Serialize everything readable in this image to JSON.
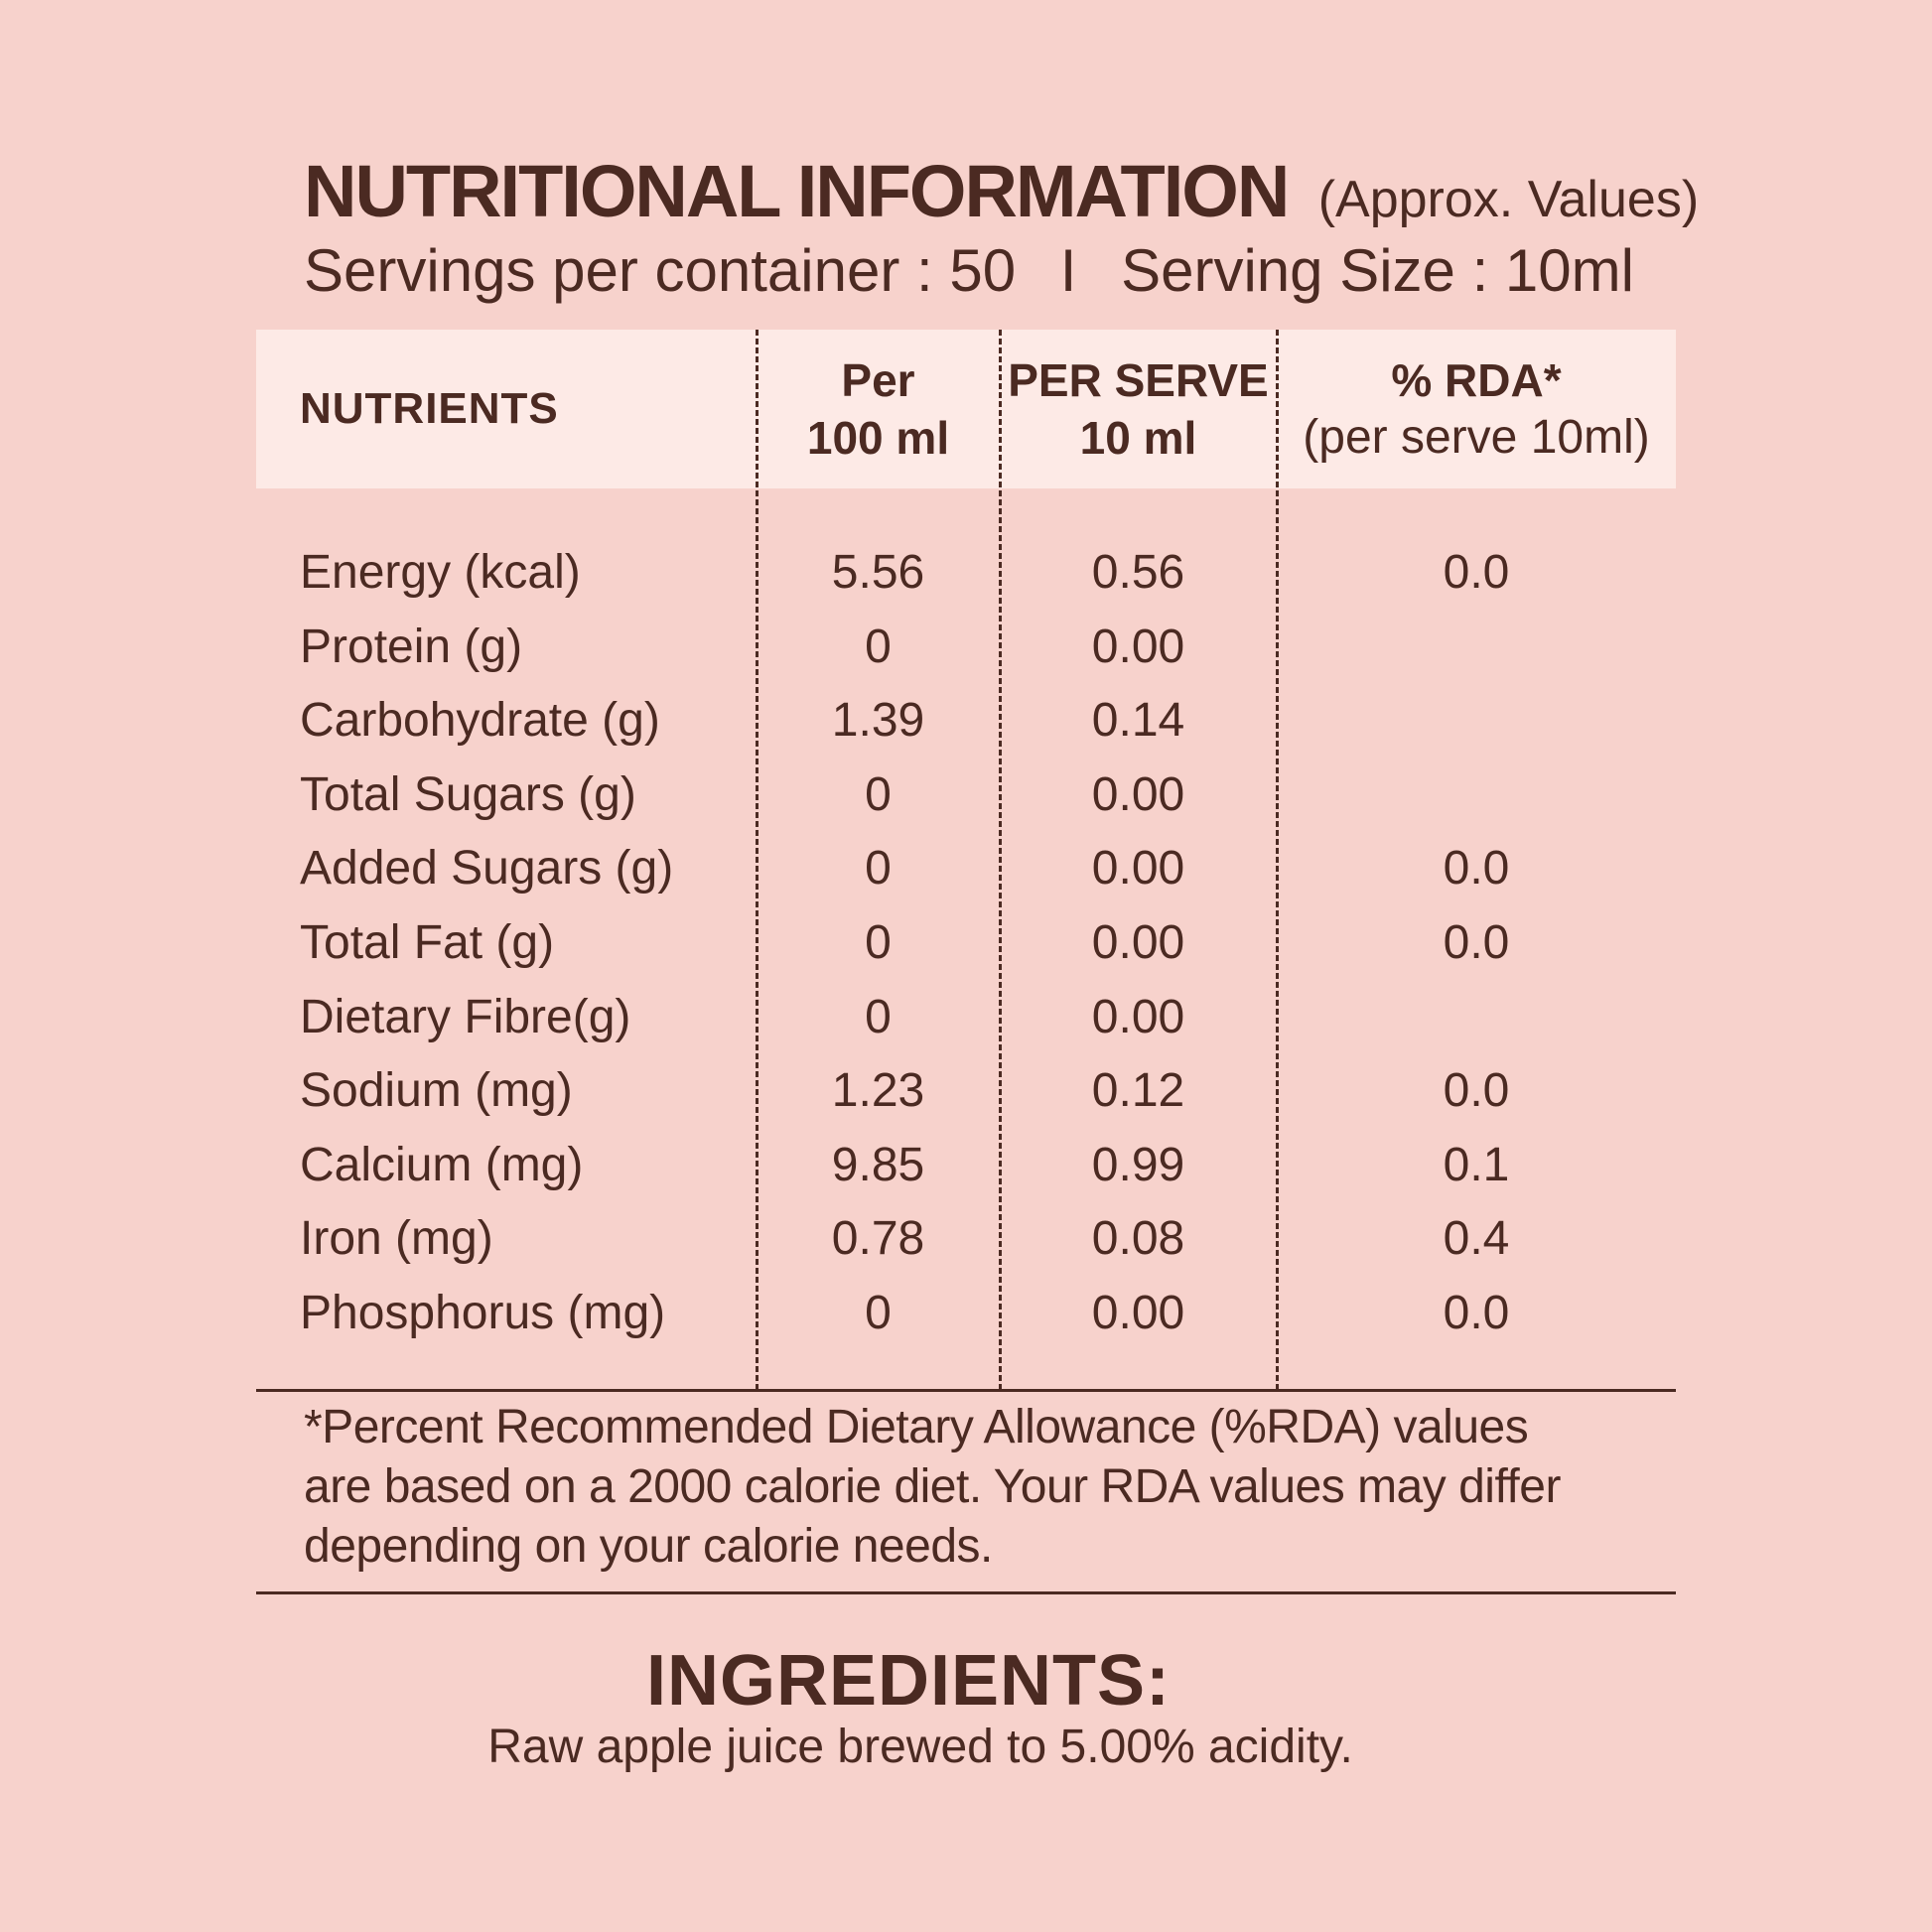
{
  "header": {
    "title": "NUTRITIONAL INFORMATION",
    "approx": "(Approx. Values)",
    "servings_per_container": "Servings per container : 50",
    "separator": "I",
    "serving_size": "Serving Size : 10ml"
  },
  "table": {
    "columns": {
      "nutrients": "NUTRIENTS",
      "per100_line1": "Per",
      "per100_line2": "100 ml",
      "perserve_line1": "PER SERVE",
      "perserve_line2": "10 ml",
      "rda_line1": "% RDA*",
      "rda_line2": "(per serve 10ml)"
    },
    "rows": [
      {
        "name": "Energy (kcal)",
        "per100": "5.56",
        "perserve": "0.56",
        "rda": "0.0"
      },
      {
        "name": "Protein (g)",
        "per100": "0",
        "perserve": "0.00",
        "rda": ""
      },
      {
        "name": "Carbohydrate (g)",
        "per100": "1.39",
        "perserve": "0.14",
        "rda": ""
      },
      {
        "name": "Total Sugars (g)",
        "per100": "0",
        "perserve": "0.00",
        "rda": ""
      },
      {
        "name": "Added Sugars (g)",
        "per100": "0",
        "perserve": "0.00",
        "rda": "0.0"
      },
      {
        "name": "Total Fat (g)",
        "per100": "0",
        "perserve": "0.00",
        "rda": "0.0"
      },
      {
        "name": "Dietary Fibre(g)",
        "per100": "0",
        "perserve": "0.00",
        "rda": ""
      },
      {
        "name": "Sodium (mg)",
        "per100": "1.23",
        "perserve": "0.12",
        "rda": "0.0"
      },
      {
        "name": "Calcium (mg)",
        "per100": "9.85",
        "perserve": "0.99",
        "rda": "0.1"
      },
      {
        "name": "Iron (mg)",
        "per100": "0.78",
        "perserve": "0.08",
        "rda": "0.4"
      },
      {
        "name": "Phosphorus (mg)",
        "per100": "0",
        "perserve": "0.00",
        "rda": "0.0"
      }
    ]
  },
  "footnote": {
    "line1": "*Percent Recommended Dietary Allowance (%RDA) values",
    "line2": "are based on a 2000 calorie diet. Your RDA values may differ",
    "line3": "depending on your calorie needs."
  },
  "ingredients": {
    "title": "INGREDIENTS:",
    "text": "Raw apple juice brewed to 5.00% acidity."
  },
  "colors": {
    "background": "#f7d2cc",
    "header_band": "#fdeae6",
    "text": "#4b2a22"
  }
}
